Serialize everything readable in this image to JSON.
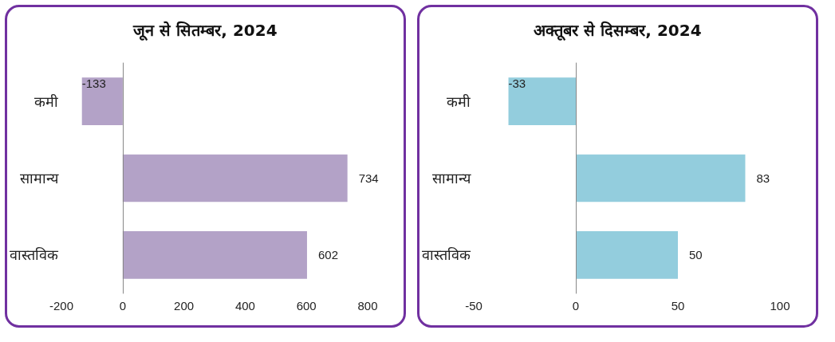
{
  "chart_data": [
    {
      "type": "bar",
      "orientation": "horizontal",
      "title": "जून से सितम्बर, 2024",
      "categories": [
        "कमी",
        "सामान्य",
        "वास्तविक"
      ],
      "values": [
        -133,
        734,
        602
      ],
      "color": "#b3a2c7",
      "xlim": [
        -200,
        800
      ],
      "xticks": [
        -200,
        0,
        200,
        400,
        600,
        800
      ],
      "data_labels": true
    },
    {
      "type": "bar",
      "orientation": "horizontal",
      "title": "अक्तूबर से दिसम्बर, 2024",
      "categories": [
        "कमी",
        "सामान्य",
        "वास्तविक"
      ],
      "values": [
        -33,
        83,
        50
      ],
      "color": "#93cddd",
      "xlim": [
        -50,
        100
      ],
      "xticks": [
        -50,
        0,
        50,
        100
      ],
      "data_labels": true
    }
  ]
}
